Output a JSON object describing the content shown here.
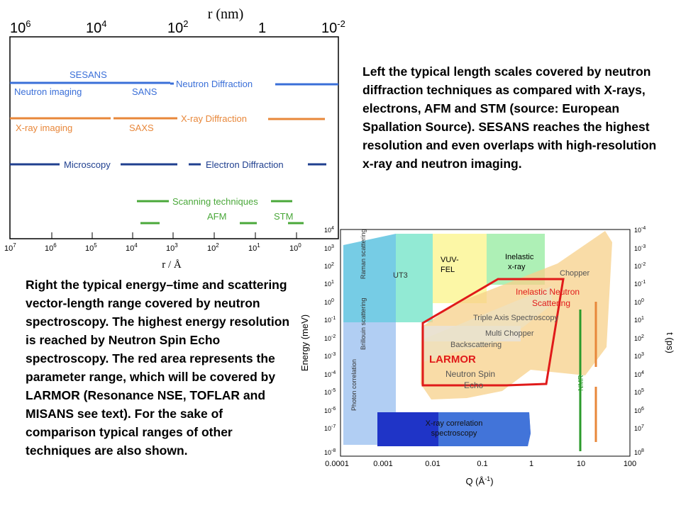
{
  "top_chart": {
    "top_axis_title": "r (nm)",
    "top_ticks": [
      {
        "base": "10",
        "exp": "6"
      },
      {
        "base": "10",
        "exp": "4"
      },
      {
        "base": "10",
        "exp": "2"
      },
      {
        "base": "1",
        "exp": ""
      },
      {
        "base": "10",
        "exp": "-2"
      }
    ],
    "bottom_axis_title": "r / Å",
    "bottom_ticks": [
      {
        "base": "10",
        "exp": "7"
      },
      {
        "base": "10",
        "exp": "6"
      },
      {
        "base": "10",
        "exp": "5"
      },
      {
        "base": "10",
        "exp": "4"
      },
      {
        "base": "10",
        "exp": "3"
      },
      {
        "base": "10",
        "exp": "2"
      },
      {
        "base": "10",
        "exp": "1"
      },
      {
        "base": "10",
        "exp": "0"
      }
    ],
    "labels": {
      "sesans": "SESANS",
      "neutron_imaging": "Neutron imaging",
      "sans": "SANS",
      "neutron_diffraction": "Neutron Diffraction",
      "xray_imaging": "X-ray imaging",
      "saxs": "SAXS",
      "xray_diffraction": "X-ray Diffraction",
      "microscopy": "Microscopy",
      "electron_diffraction": "Electron Diffraction",
      "scanning": "Scanning techniques",
      "afm": "AFM",
      "stm": "STM"
    },
    "colors": {
      "neutron": "#3a6fd8",
      "xray": "#e8873a",
      "electron": "#1f3f8f",
      "scanning": "#4aa83a"
    }
  },
  "right_chart": {
    "y_axis_title": "Energy (meV)",
    "y2_axis_title": "t (ps)",
    "x_axis_title_base": "Q (Å",
    "x_axis_title_exp": "-1",
    "x_axis_title_end": ")",
    "x_ticks": [
      "0.0001",
      "0.001",
      "0.01",
      "0.1",
      "1",
      "10",
      "100"
    ],
    "y_ticks": [
      {
        "base": "10",
        "exp": "4"
      },
      {
        "base": "10",
        "exp": "3"
      },
      {
        "base": "10",
        "exp": "2"
      },
      {
        "base": "10",
        "exp": "1"
      },
      {
        "base": "10",
        "exp": "0"
      },
      {
        "base": "10",
        "exp": "-1"
      },
      {
        "base": "10",
        "exp": "-2"
      },
      {
        "base": "10",
        "exp": "-3"
      },
      {
        "base": "10",
        "exp": "-4"
      },
      {
        "base": "10",
        "exp": "-5"
      },
      {
        "base": "10",
        "exp": "-6"
      },
      {
        "base": "10",
        "exp": "-7"
      },
      {
        "base": "10",
        "exp": "-8"
      }
    ],
    "y2_ticks": [
      {
        "base": "10",
        "exp": "-4"
      },
      {
        "base": "10",
        "exp": "-3"
      },
      {
        "base": "10",
        "exp": "-2"
      },
      {
        "base": "10",
        "exp": "-1"
      },
      {
        "base": "10",
        "exp": "0"
      },
      {
        "base": "10",
        "exp": "1"
      },
      {
        "base": "10",
        "exp": "2"
      },
      {
        "base": "10",
        "exp": "3"
      },
      {
        "base": "10",
        "exp": "4"
      },
      {
        "base": "10",
        "exp": "5"
      },
      {
        "base": "10",
        "exp": "6"
      },
      {
        "base": "10",
        "exp": "7"
      },
      {
        "base": "10",
        "exp": "8"
      }
    ],
    "regions": {
      "raman": "Raman scattering",
      "brillouin": "Brillouin scattering",
      "photon": "Photon correlation",
      "ut3": "UT3",
      "vuv_fel": [
        "VUV-",
        "FEL"
      ],
      "inelastic_xray": [
        "Inelastic",
        "x-ray"
      ],
      "chopper": "Chopper",
      "inelastic_neutron": [
        "Inelastic Neutron",
        "Scattering"
      ],
      "triple_axis": "Triple Axis Spectroscopy",
      "multi_chopper": "Multi  Chopper",
      "backscattering": "Backscattering",
      "nse": [
        "Neutron Spin",
        "Echo"
      ],
      "larmor": "LARMOR",
      "nmr": "NMR",
      "xray_corr": [
        "X-ray correlation",
        "spectroscopy"
      ]
    }
  },
  "caption_right": "Left the typical length scales covered by neutron diffraction techniques as compared with X-rays, electrons, AFM and STM (source: European Spallation Source). SESANS reaches the highest resolution and even overlaps with high-resolution x-ray and neutron imaging.",
  "caption_left": "Right the typical energy–time and scattering vector-length range covered by neutron spectroscopy. The highest energy resolution is reached by Neutron Spin Echo spectroscopy. The red area represents the parameter range, which will be covered by LARMOR (Resonance NSE, TOFLAR and MISANS see text). For the sake of comparison typical ranges of other techniques are also shown."
}
